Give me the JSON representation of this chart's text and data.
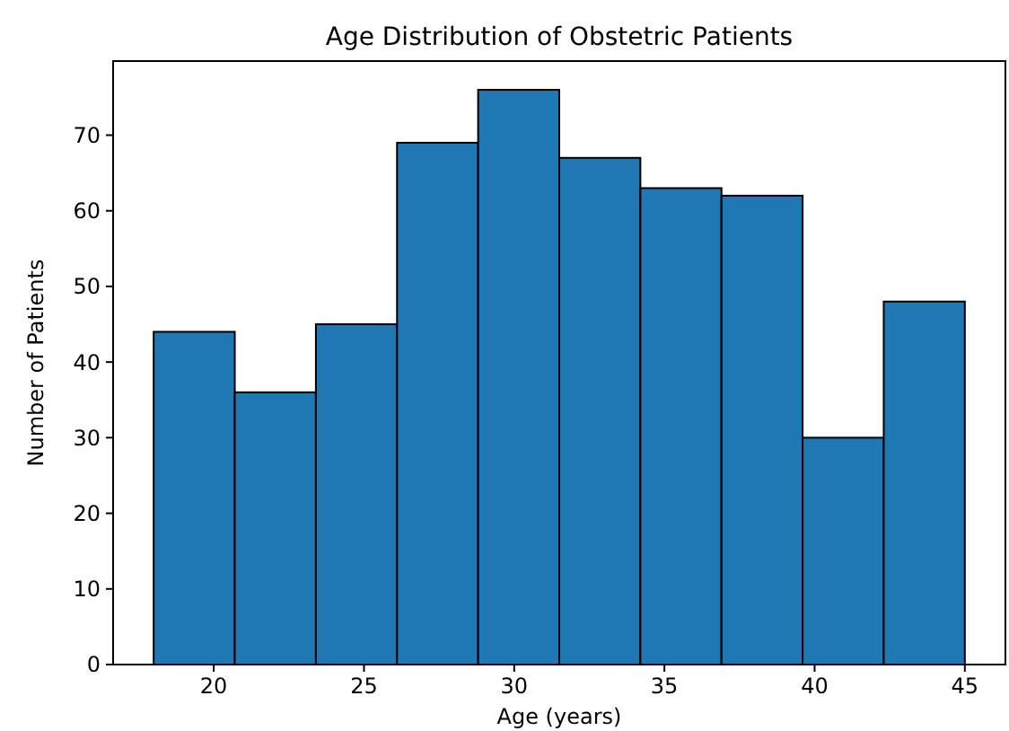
{
  "chart_data": {
    "type": "histogram",
    "title": "Age Distribution of Obstetric Patients",
    "xlabel": "Age (years)",
    "ylabel": "Number of Patients",
    "bins": [
      18,
      20.7,
      23.4,
      26.1,
      28.8,
      31.5,
      34.2,
      36.9,
      39.6,
      42.3,
      45
    ],
    "values": [
      44,
      36,
      45,
      69,
      76,
      67,
      63,
      62,
      30,
      48
    ],
    "color": "#1f77b4",
    "xlim": [
      16.65,
      46.35
    ],
    "xticks": [
      20,
      25,
      30,
      35,
      40,
      45
    ],
    "ylim": [
      0,
      79.8
    ],
    "yticks": [
      0,
      10,
      20,
      30,
      40,
      50,
      60,
      70
    ],
    "grid": false
  }
}
